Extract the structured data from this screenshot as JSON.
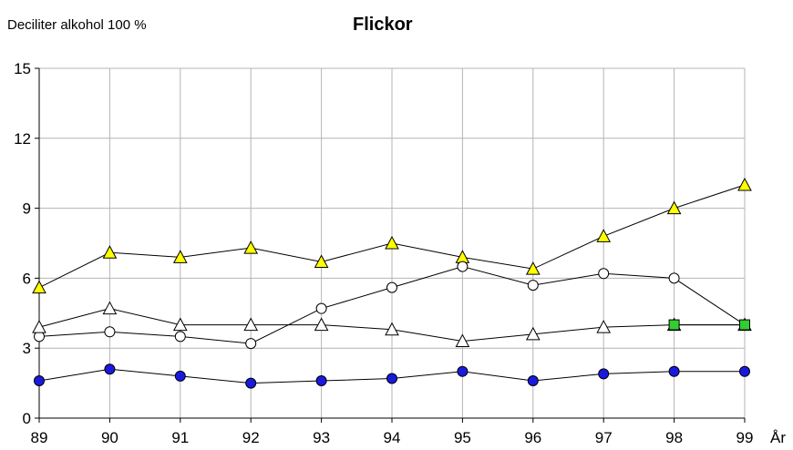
{
  "chart_data": {
    "type": "line",
    "title": "Flickor",
    "ylabel": "Deciliter alkohol 100 %",
    "xlabel": "År",
    "x": [
      "89",
      "90",
      "91",
      "92",
      "93",
      "94",
      "95",
      "96",
      "97",
      "98",
      "99"
    ],
    "ylim": [
      0,
      15
    ],
    "yticks": [
      0,
      3,
      6,
      9,
      12,
      15
    ],
    "grid": true,
    "legend": "none",
    "series": [
      {
        "marker": "triangle",
        "fill": "#ffff00",
        "values": [
          5.6,
          7.1,
          6.9,
          7.3,
          6.7,
          7.5,
          6.9,
          6.4,
          7.8,
          9.0,
          10.0
        ]
      },
      {
        "marker": "circle-open",
        "fill": "#ffffff",
        "values": [
          3.5,
          3.7,
          3.5,
          3.2,
          4.7,
          5.6,
          6.5,
          5.7,
          6.2,
          6.0,
          4.0
        ]
      },
      {
        "marker": "triangle-open",
        "fill": "#ffffff",
        "values": [
          3.9,
          4.7,
          4.0,
          4.0,
          4.0,
          3.8,
          3.3,
          3.6,
          3.9,
          4.0,
          4.0
        ]
      },
      {
        "marker": "square",
        "fill": "#33cc33",
        "values": [
          null,
          null,
          null,
          null,
          null,
          null,
          null,
          null,
          null,
          4.0,
          4.0
        ]
      },
      {
        "marker": "circle",
        "fill": "#1a1adf",
        "values": [
          1.6,
          2.1,
          1.8,
          1.5,
          1.6,
          1.7,
          2.0,
          1.6,
          1.9,
          2.0,
          2.0
        ]
      }
    ]
  }
}
